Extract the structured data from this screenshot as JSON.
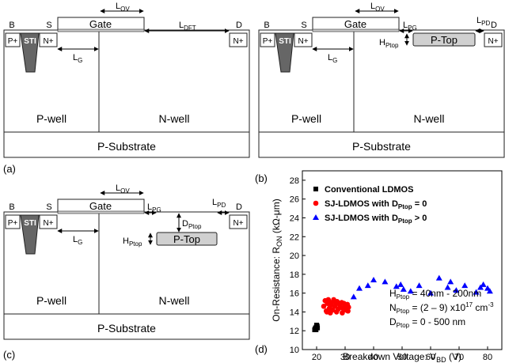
{
  "panel_a": {
    "tag": "(a)",
    "labels": {
      "B": "B",
      "S": "S",
      "D": "D",
      "p_plus": "P+",
      "sti": "STI",
      "n_plus_s": "N+",
      "n_plus_d": "N+",
      "gate": "Gate",
      "p_well": "P-well",
      "n_well": "N-well",
      "p_substrate": "P-Substrate",
      "l_ov": "L",
      "l_ov_sub": "OV",
      "l_g": "L",
      "l_g_sub": "G",
      "l_dft": "L",
      "l_dft_sub": "DFT"
    }
  },
  "panel_b": {
    "tag": "(b)",
    "labels": {
      "B": "B",
      "S": "S",
      "D": "D",
      "p_plus": "P+",
      "sti": "STI",
      "n_plus_s": "N+",
      "n_plus_d": "N+",
      "gate": "Gate",
      "p_top": "P-Top",
      "p_well": "P-well",
      "n_well": "N-well",
      "p_substrate": "P-Substrate",
      "l_ov": "L",
      "l_ov_sub": "OV",
      "l_g": "L",
      "l_g_sub": "G",
      "l_pg": "L",
      "l_pg_sub": "PG",
      "l_pd": "L",
      "l_pd_sub": "PD",
      "h_ptop": "H",
      "h_ptop_sub": "Ptop"
    }
  },
  "panel_c": {
    "tag": "(c)",
    "labels": {
      "B": "B",
      "S": "S",
      "D": "D",
      "p_plus": "P+",
      "sti": "STI",
      "n_plus_s": "N+",
      "n_plus_d": "N+",
      "gate": "Gate",
      "p_top": "P-Top",
      "p_well": "P-well",
      "n_well": "N-well",
      "p_substrate": "P-Substrate",
      "l_ov": "L",
      "l_ov_sub": "OV",
      "l_g": "L",
      "l_g_sub": "G",
      "l_pg": "L",
      "l_pg_sub": "PG",
      "l_pd": "L",
      "l_pd_sub": "PD",
      "d_ptop": "D",
      "d_ptop_sub": "Ptop",
      "h_ptop": "H",
      "h_ptop_sub": "Ptop"
    }
  },
  "panel_d": {
    "tag": "(d)"
  },
  "chart_data": {
    "type": "scatter",
    "title": "",
    "ylabel": "On-Resistance: R",
    "ylabel_sub": "ON",
    "ylabel_unit": " (kΩ-μm)",
    "xlabel": "Breakdown Voltage: V",
    "xlabel_sub": "BD",
    "xlabel_unit": " (V)",
    "xlim": [
      15,
      85
    ],
    "ylim": [
      10,
      29
    ],
    "xticks": [
      20,
      30,
      40,
      50,
      60,
      70,
      80
    ],
    "yticks": [
      10,
      12,
      14,
      16,
      18,
      20,
      22,
      24,
      26,
      28
    ],
    "legend_position": "top-left",
    "series": [
      {
        "name": "Conventional LDMOS",
        "name_sub": "",
        "name_suffix": "",
        "marker": "square",
        "color": "#000000",
        "points": [
          [
            19.3,
            12.1
          ],
          [
            19.6,
            12.3
          ],
          [
            19.9,
            12.4
          ],
          [
            20.2,
            12.5
          ],
          [
            19.5,
            12.2
          ],
          [
            20.0,
            12.6
          ],
          [
            20.3,
            12.3
          ],
          [
            19.8,
            12.1
          ]
        ]
      },
      {
        "name": "SJ-LDMOS with D",
        "name_sub": "Ptop",
        "name_suffix": " = 0",
        "marker": "circle",
        "color": "#ff0000",
        "points": [
          [
            22.5,
            14.6
          ],
          [
            23.0,
            15.2
          ],
          [
            23.4,
            14.1
          ],
          [
            23.8,
            14.9
          ],
          [
            24.1,
            15.3
          ],
          [
            24.5,
            14.4
          ],
          [
            24.8,
            13.9
          ],
          [
            25.2,
            15.0
          ],
          [
            25.6,
            14.2
          ],
          [
            26.0,
            15.3
          ],
          [
            26.4,
            14.6
          ],
          [
            26.8,
            14.9
          ],
          [
            27.2,
            15.1
          ],
          [
            27.6,
            14.3
          ],
          [
            28.0,
            14.8
          ],
          [
            28.4,
            14.5
          ],
          [
            28.8,
            15.0
          ],
          [
            29.2,
            14.4
          ],
          [
            29.6,
            14.9
          ],
          [
            30.0,
            14.6
          ],
          [
            30.4,
            14.2
          ],
          [
            30.8,
            14.8
          ],
          [
            31.2,
            14.5
          ],
          [
            23.6,
            14.0
          ],
          [
            25.0,
            14.7
          ],
          [
            27.0,
            14.0
          ],
          [
            29.0,
            13.9
          ],
          [
            31.0,
            14.1
          ]
        ]
      },
      {
        "name": "SJ-LDMOS with D",
        "name_sub": "Ptop",
        "name_suffix": " > 0",
        "marker": "triangle",
        "color": "#0000ff",
        "points": [
          [
            33.0,
            15.6
          ],
          [
            35.0,
            16.5
          ],
          [
            38.0,
            16.8
          ],
          [
            40.0,
            17.4
          ],
          [
            44.0,
            17.2
          ],
          [
            48.0,
            16.7
          ],
          [
            49.5,
            16.9
          ],
          [
            50.5,
            16.4
          ],
          [
            53.0,
            16.2
          ],
          [
            56.0,
            16.8
          ],
          [
            60.0,
            16.0
          ],
          [
            63.0,
            17.6
          ],
          [
            66.0,
            16.6
          ],
          [
            67.0,
            17.2
          ],
          [
            69.0,
            16.3
          ],
          [
            72.0,
            16.8
          ],
          [
            76.0,
            16.1
          ],
          [
            77.5,
            16.6
          ],
          [
            78.5,
            16.9
          ],
          [
            80.0,
            16.5
          ],
          [
            80.8,
            16.2
          ]
        ]
      }
    ],
    "annotations": [
      {
        "main": "H",
        "sub": "Ptop",
        "sup": "",
        "text": " = 40nm - 200nm"
      },
      {
        "main": "N",
        "sub": "Ptop",
        "sup": "",
        "text": " = (2 – 9) x10",
        "sup2": "17",
        "text2": " cm",
        "sup3": "-3"
      },
      {
        "main": "D",
        "sub": "Ptop",
        "sup": "",
        "text": " = 0 - 500 nm"
      }
    ]
  }
}
